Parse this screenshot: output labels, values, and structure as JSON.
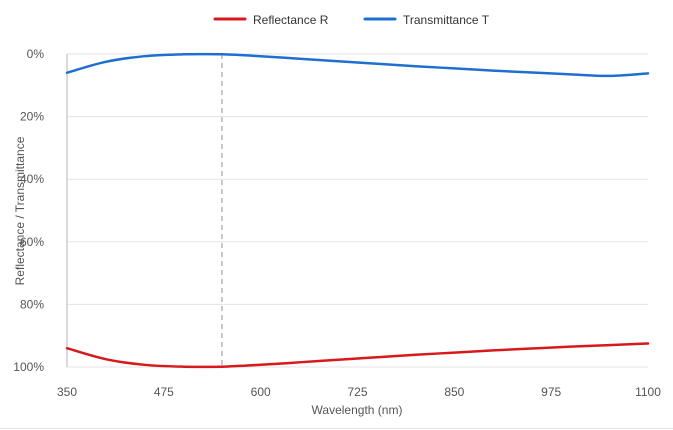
{
  "chart_data": {
    "type": "line",
    "title": "",
    "xlabel": "Wavelength (nm)",
    "ylabel": "Reflectance / Transmittance",
    "xlim": [
      350,
      1100
    ],
    "ylim": [
      0,
      100
    ],
    "y_inverted": true,
    "x_ticks": [
      350,
      475,
      600,
      725,
      850,
      975,
      1100
    ],
    "y_ticks": [
      {
        "value": 0,
        "label": "0%"
      },
      {
        "value": 20,
        "label": "20%"
      },
      {
        "value": 40,
        "label": "40%"
      },
      {
        "value": 60,
        "label": "60%"
      },
      {
        "value": 80,
        "label": "80%"
      },
      {
        "value": 100,
        "label": "100%"
      }
    ],
    "grid": true,
    "legend_position": "top-center",
    "marker_x": 550,
    "series": [
      {
        "name": "Reflectance R",
        "color": "#d7191c",
        "x": [
          350,
          400,
          450,
          500,
          550,
          600,
          650,
          700,
          750,
          800,
          850,
          900,
          950,
          1000,
          1050,
          1100
        ],
        "y": [
          94.0,
          97.5,
          99.3,
          99.9,
          99.9,
          99.3,
          98.5,
          97.7,
          96.9,
          96.1,
          95.4,
          94.7,
          94.1,
          93.5,
          93.0,
          92.5
        ]
      },
      {
        "name": "Transmittance T",
        "color": "#1f6fd1",
        "x": [
          350,
          400,
          450,
          500,
          550,
          600,
          650,
          700,
          750,
          800,
          850,
          900,
          950,
          1000,
          1050,
          1100
        ],
        "y": [
          6.0,
          2.5,
          0.7,
          0.1,
          0.1,
          0.7,
          1.5,
          2.3,
          3.1,
          3.9,
          4.6,
          5.3,
          5.9,
          6.5,
          7.0,
          6.2
        ]
      }
    ]
  }
}
